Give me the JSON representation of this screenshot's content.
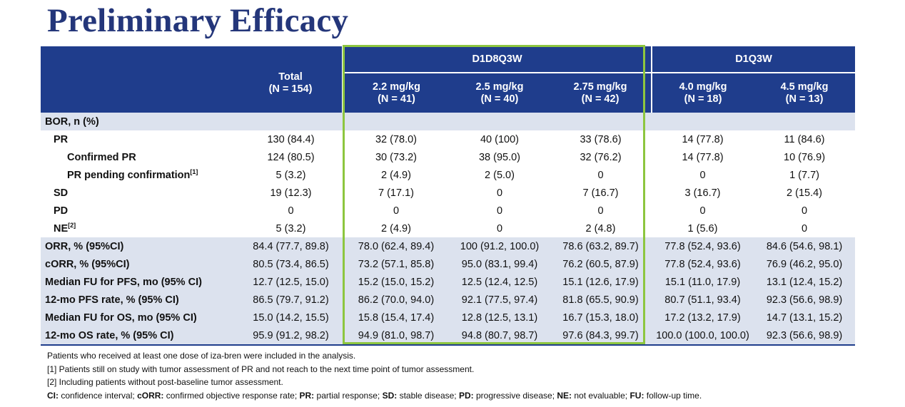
{
  "title": "Preliminary Efficacy",
  "header": {
    "total_label": "Total",
    "total_n": "(N = 154)",
    "group1": "D1D8Q3W",
    "group2": "D1Q3W",
    "columns": [
      {
        "dose": "2.2 mg/kg",
        "n": "(N = 41)"
      },
      {
        "dose": "2.5 mg/kg",
        "n": "(N = 40)"
      },
      {
        "dose": "2.75 mg/kg",
        "n": "(N = 42)"
      },
      {
        "dose": "4.0 mg/kg",
        "n": "(N = 18)"
      },
      {
        "dose": "4.5 mg/kg",
        "n": "(N = 13)"
      }
    ]
  },
  "rows": [
    {
      "label": "BOR, n (%)",
      "values": [
        "",
        "",
        "",
        "",
        "",
        ""
      ]
    },
    {
      "label": "PR",
      "values": [
        "130 (84.4)",
        "32 (78.0)",
        "40 (100)",
        "33 (78.6)",
        "14 (77.8)",
        "11 (84.6)"
      ]
    },
    {
      "label": "Confirmed PR",
      "values": [
        "124 (80.5)",
        "30 (73.2)",
        "38 (95.0)",
        "32 (76.2)",
        "14 (77.8)",
        "10 (76.9)"
      ]
    },
    {
      "label": "PR pending confirmation",
      "sup": "[1]",
      "values": [
        "5 (3.2)",
        "2 (4.9)",
        "2 (5.0)",
        "0",
        "0",
        "1 (7.7)"
      ]
    },
    {
      "label": "SD",
      "values": [
        "19 (12.3)",
        "7 (17.1)",
        "0",
        "7 (16.7)",
        "3 (16.7)",
        "2 (15.4)"
      ]
    },
    {
      "label": "PD",
      "values": [
        "0",
        "0",
        "0",
        "0",
        "0",
        "0"
      ]
    },
    {
      "label": "NE",
      "sup": "[2]",
      "values": [
        "5 (3.2)",
        "2 (4.9)",
        "0",
        "2 (4.8)",
        "1 (5.6)",
        "0"
      ]
    },
    {
      "label": "ORR, % (95%CI)",
      "values": [
        "84.4 (77.7, 89.8)",
        "78.0 (62.4, 89.4)",
        "100 (91.2, 100.0)",
        "78.6 (63.2, 89.7)",
        "77.8 (52.4, 93.6)",
        "84.6 (54.6, 98.1)"
      ]
    },
    {
      "label": "cORR, % (95%CI)",
      "values": [
        "80.5 (73.4, 86.5)",
        "73.2 (57.1, 85.8)",
        "95.0 (83.1, 99.4)",
        "76.2 (60.5, 87.9)",
        "77.8 (52.4, 93.6)",
        "76.9 (46.2, 95.0)"
      ]
    },
    {
      "label": "Median FU for PFS, mo (95% CI)",
      "values": [
        "12.7 (12.5, 15.0)",
        "15.2 (15.0, 15.2)",
        "12.5 (12.4, 12.5)",
        "15.1 (12.6, 17.9)",
        "15.1 (11.0, 17.9)",
        "13.1 (12.4, 15.2)"
      ]
    },
    {
      "label": "12-mo PFS rate, % (95% CI)",
      "values": [
        "86.5 (79.7, 91.2)",
        "86.2 (70.0, 94.0)",
        "92.1 (77.5, 97.4)",
        "81.8 (65.5, 90.9)",
        "80.7 (51.1, 93.4)",
        "92.3 (56.6, 98.9)"
      ]
    },
    {
      "label": "Median FU for OS, mo (95% CI)",
      "values": [
        "15.0 (14.2, 15.5)",
        "15.8 (15.4, 17.4)",
        "12.8 (12.5, 13.1)",
        "16.7 (15.3, 18.0)",
        "17.2 (13.2, 17.9)",
        "14.7 (13.1, 15.2)"
      ]
    },
    {
      "label": "12-mo OS rate, % (95% CI)",
      "values": [
        "95.9 (91.2, 98.2)",
        "94.9 (81.0, 98.7)",
        "94.8 (80.7, 98.7)",
        "97.6 (84.3, 99.7)",
        "100.0 (100.0, 100.0)",
        "92.3 (56.6, 98.9)"
      ]
    }
  ],
  "footnotes": {
    "line1": "Patients who received at least one dose of iza-bren were included in the analysis.",
    "line2": "[1] Patients still on study with tumor assessment of PR and not reach to the next time point of tumor assessment.",
    "line3": "[2] Including patients without post-baseline tumor assessment.",
    "abbrev": [
      {
        "term": "CI:",
        "def": " confidence interval; "
      },
      {
        "term": "cORR:",
        "def": " confirmed objective response rate; "
      },
      {
        "term": "PR:",
        "def": " partial response; "
      },
      {
        "term": "SD:",
        "def": " stable disease; "
      },
      {
        "term": "PD:",
        "def": " progressive disease; "
      },
      {
        "term": "NE:",
        "def": " not evaluable; "
      },
      {
        "term": "FU:",
        "def": " follow-up time."
      }
    ]
  },
  "colors": {
    "header_bg": "#1f3d8c",
    "title": "#24367a",
    "row_shade": "#dce2ee",
    "highlight_box": "#8dc63f"
  }
}
